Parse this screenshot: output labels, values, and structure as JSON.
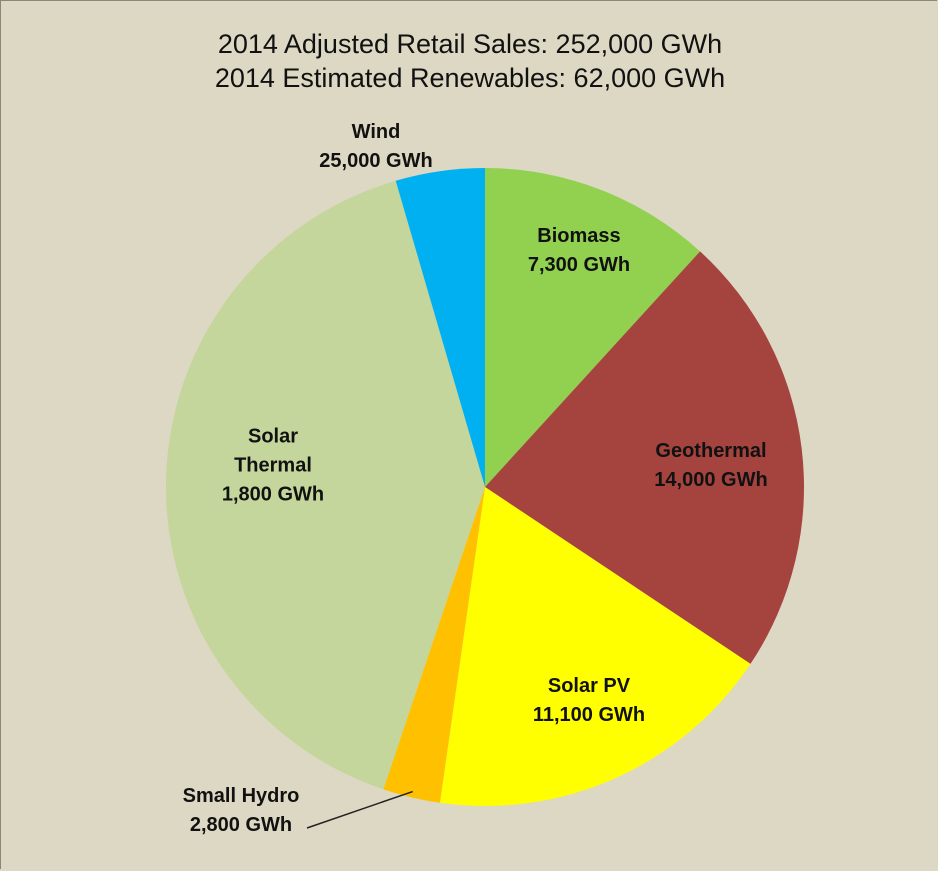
{
  "chart_data": {
    "type": "pie",
    "title": "2014 Adjusted Retail Sales: 252,000 GWh",
    "subtitle": "2014 Estimated Renewables:  62,000 GWh",
    "categories": [
      "Biomass",
      "Geothermal",
      "Solar PV",
      "Solar Thermal",
      "Wind",
      "Small Hydro"
    ],
    "values": [
      7300,
      14000,
      11100,
      1800,
      25000,
      2800
    ],
    "value_labels": [
      "7,300 GWh",
      "14,000 GWh",
      "11,100 GWh",
      "1,800 GWh",
      "25,000 GWh",
      "2,800 GWh"
    ],
    "colors": [
      "#92d050",
      "#a5443f",
      "#ffff00",
      "#ffc000",
      "#c4d69b",
      "#00b0f0"
    ]
  }
}
